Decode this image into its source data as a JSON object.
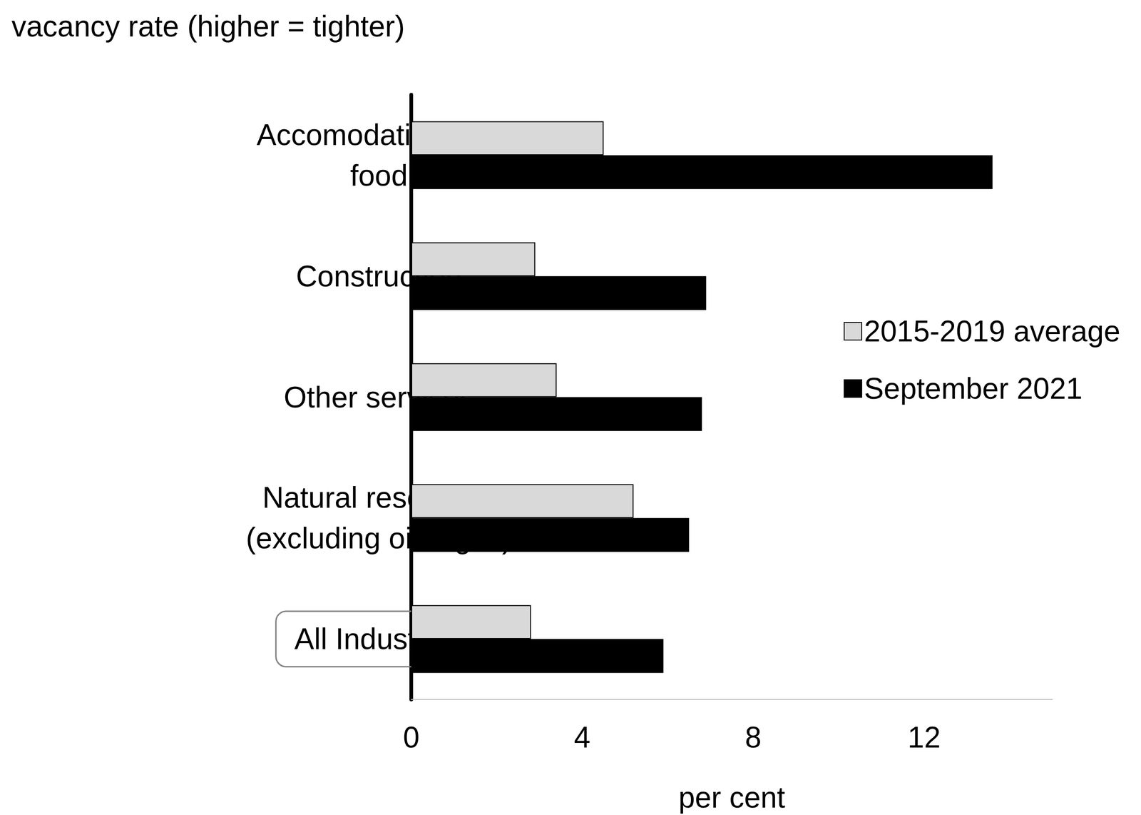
{
  "chart_data": {
    "type": "bar",
    "orientation": "horizontal",
    "title": "vacancy rate (higher = tighter)",
    "x_label": "per cent",
    "categories": [
      "Accomodation and\nfood",
      "Construction",
      "Other services",
      "Natural resources\n(excluding oil & gas)",
      "All Industries"
    ],
    "series": [
      {
        "name": "2015-2019 average",
        "color": "#d9d9d9",
        "values": [
          4.5,
          2.9,
          3.4,
          5.2,
          2.8
        ]
      },
      {
        "name": "September 2021",
        "color": "#000000",
        "values": [
          13.6,
          6.9,
          6.8,
          6.5,
          5.9
        ]
      }
    ],
    "xlim": [
      0,
      15
    ],
    "xticks": [
      0,
      4,
      8,
      12
    ],
    "grid": false,
    "legend": "right"
  }
}
